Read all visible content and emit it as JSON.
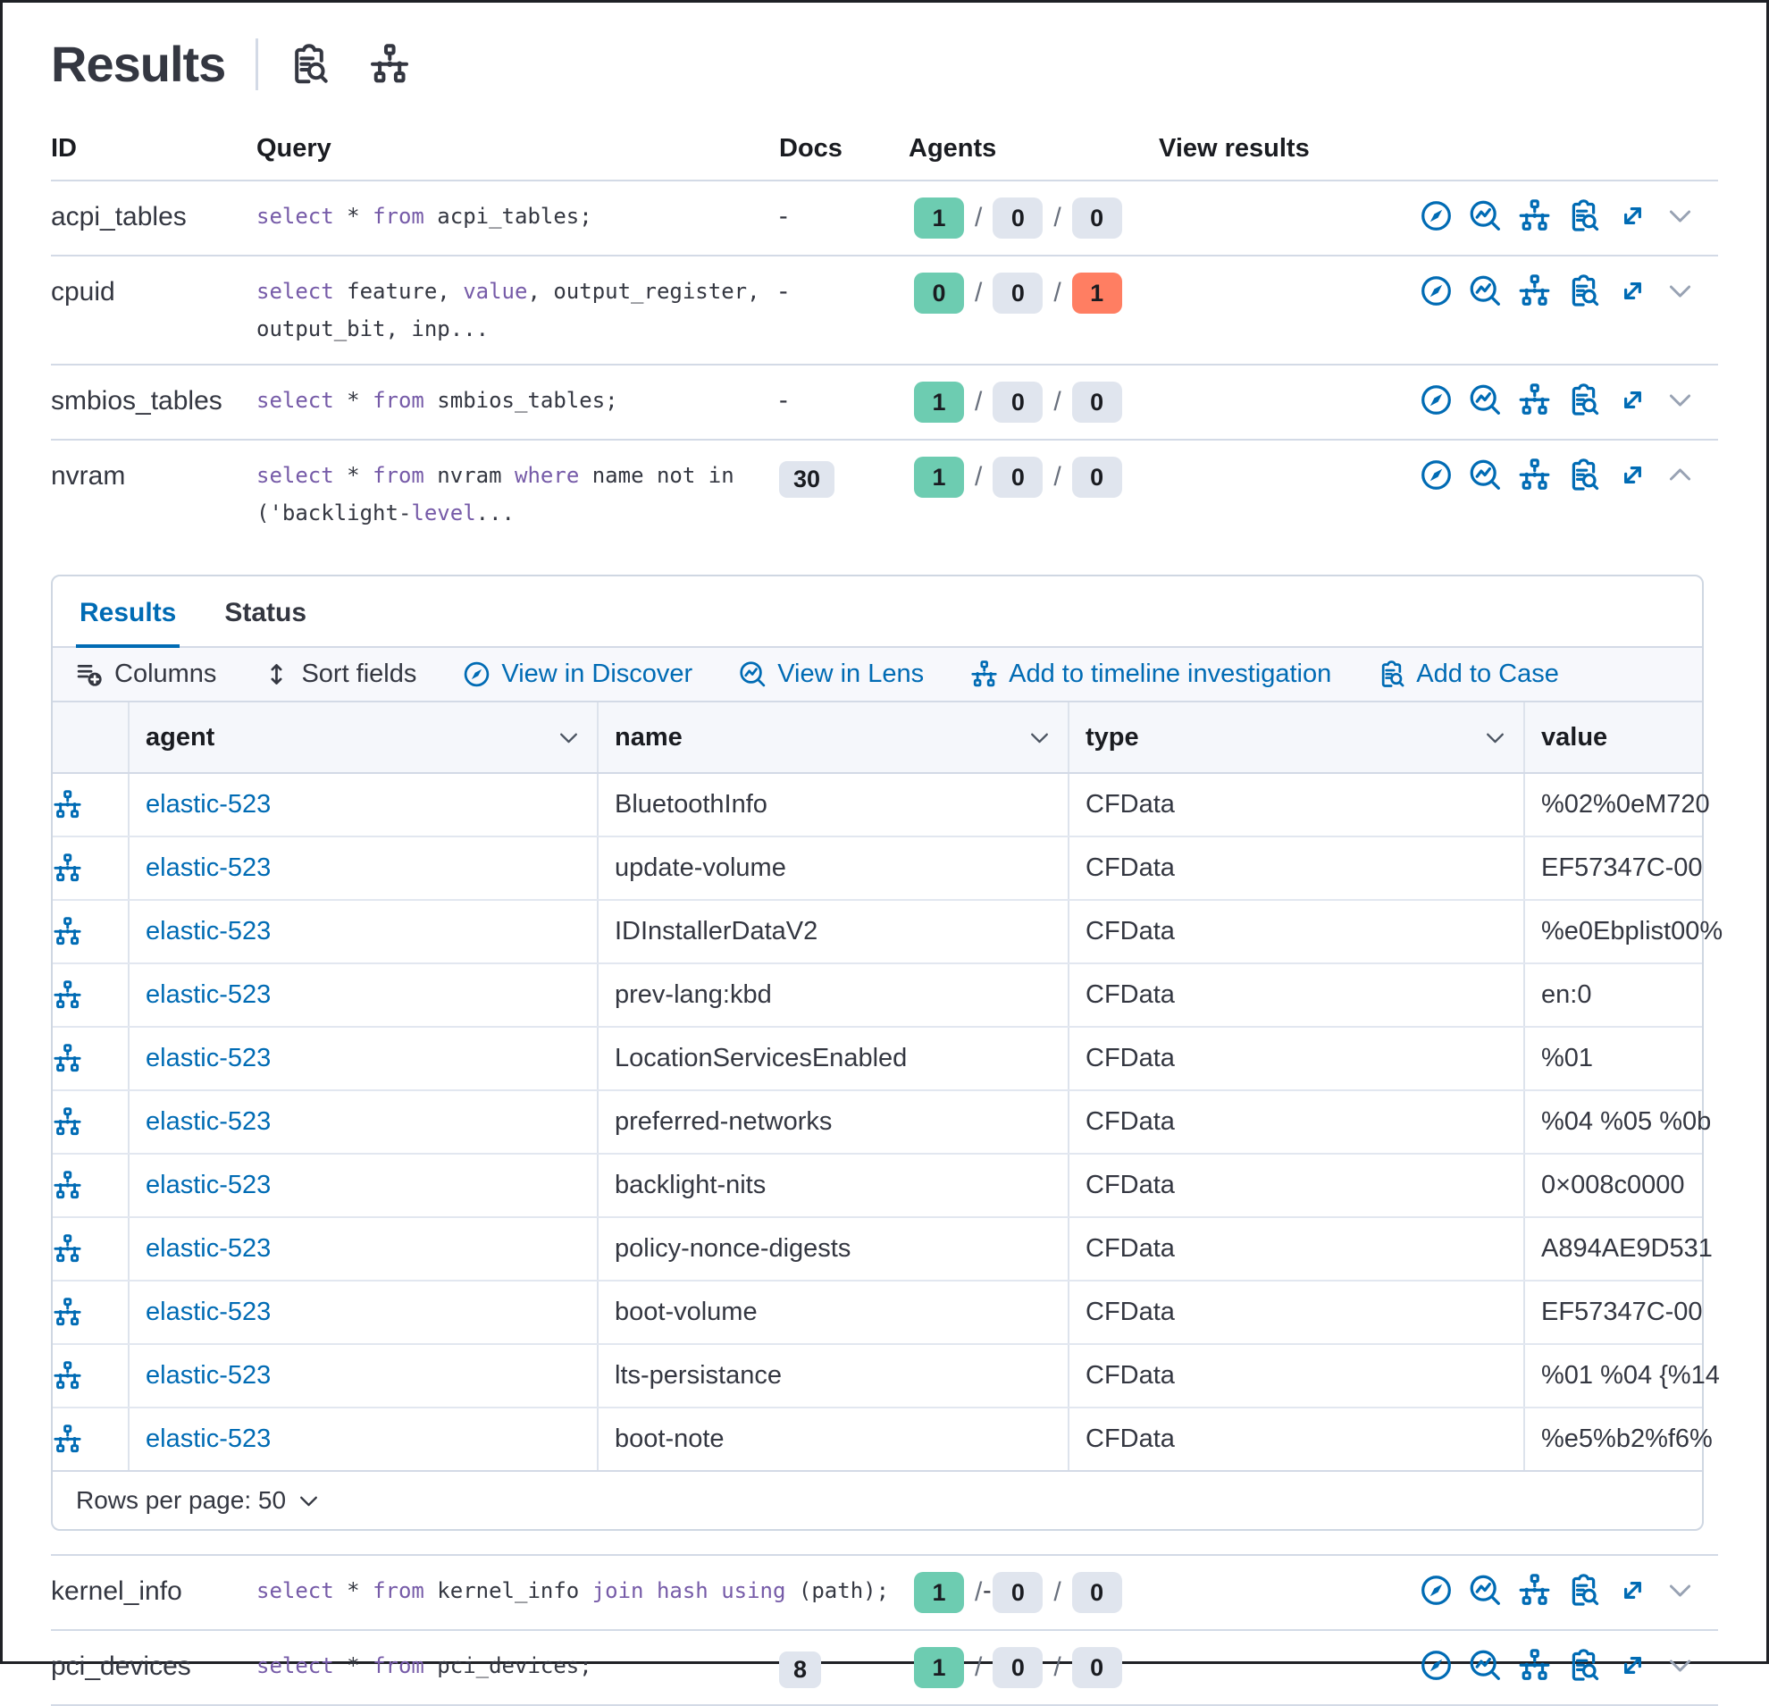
{
  "page": {
    "title": "Results"
  },
  "colors": {
    "accent_blue": "#006bb4",
    "keyword_purple": "#765ba8",
    "badge_success_green": "#6dccb1",
    "badge_neutral_gray": "#e0e5ee",
    "badge_failed_red": "#ff7e62",
    "border_gray": "#d3dae6"
  },
  "header_icons": [
    {
      "icon": "cases",
      "name": "inspect-results-icon"
    },
    {
      "icon": "timeline",
      "name": "timeline-icon"
    }
  ],
  "table": {
    "columns": {
      "id": "ID",
      "query": "Query",
      "docs": "Docs",
      "agents": "Agents",
      "view": "View results"
    },
    "rows": [
      {
        "id": "acpi_tables",
        "docs": "-",
        "agents": {
          "success": "1",
          "pending": "0",
          "failed": "0"
        },
        "expanded": false,
        "query": [
          [
            "kw",
            "select"
          ],
          [
            "pl",
            " * "
          ],
          [
            "kw",
            "from"
          ],
          [
            "pl",
            " acpi_tables;"
          ]
        ]
      },
      {
        "id": "cpuid",
        "docs": "-",
        "agents": {
          "success": "0",
          "pending": "0",
          "failed": "1"
        },
        "expanded": false,
        "query": [
          [
            "kw",
            "select"
          ],
          [
            "pl",
            " feature, "
          ],
          [
            "kw",
            "value"
          ],
          [
            "pl",
            ", output_register,\noutput_bit, inp..."
          ]
        ]
      },
      {
        "id": "smbios_tables",
        "docs": "-",
        "agents": {
          "success": "1",
          "pending": "0",
          "failed": "0"
        },
        "expanded": false,
        "query": [
          [
            "kw",
            "select"
          ],
          [
            "pl",
            " * "
          ],
          [
            "kw",
            "from"
          ],
          [
            "pl",
            " smbios_tables;"
          ]
        ]
      },
      {
        "id": "nvram",
        "docs": "30",
        "agents": {
          "success": "1",
          "pending": "0",
          "failed": "0"
        },
        "expanded": true,
        "query": [
          [
            "kw",
            "select"
          ],
          [
            "pl",
            " * "
          ],
          [
            "kw",
            "from"
          ],
          [
            "pl",
            " nvram "
          ],
          [
            "kw",
            "where"
          ],
          [
            "pl",
            " name not in\n('backlight-"
          ],
          [
            "kw",
            "level"
          ],
          [
            "pl",
            "..."
          ]
        ]
      },
      {
        "id": "kernel_info",
        "docs": "-",
        "docs_inline": true,
        "nowrap": true,
        "agents": {
          "success": "1",
          "pending": "0",
          "failed": "0"
        },
        "expanded": false,
        "query": [
          [
            "kw",
            "select"
          ],
          [
            "pl",
            " * "
          ],
          [
            "kw",
            "from"
          ],
          [
            "pl",
            " kernel_info "
          ],
          [
            "kw",
            "join"
          ],
          [
            "pl",
            " "
          ],
          [
            "kw",
            "hash"
          ],
          [
            "pl",
            " "
          ],
          [
            "kw",
            "using"
          ],
          [
            "pl",
            " (path);"
          ]
        ]
      },
      {
        "id": "pci_devices",
        "docs": "8",
        "agents": {
          "success": "1",
          "pending": "0",
          "failed": "0"
        },
        "expanded": false,
        "query": [
          [
            "kw",
            "select"
          ],
          [
            "pl",
            " * "
          ],
          [
            "kw",
            "from"
          ],
          [
            "pl",
            " pci_devices;"
          ]
        ]
      }
    ]
  },
  "view_actions": [
    {
      "icon": "discover",
      "name": "view-in-discover-button"
    },
    {
      "icon": "lens",
      "name": "view-in-lens-button"
    },
    {
      "icon": "timeline",
      "name": "add-to-timeline-button"
    },
    {
      "icon": "cases",
      "name": "add-to-case-button"
    },
    {
      "icon": "expand",
      "name": "expand-results-button"
    }
  ],
  "panel": {
    "tabs": [
      {
        "label": "Results",
        "active": true
      },
      {
        "label": "Status",
        "active": false
      }
    ],
    "toolbar": [
      {
        "label": "Columns",
        "icon": "columns",
        "style": "dark",
        "name": "columns-button"
      },
      {
        "label": "Sort fields",
        "icon": "sort",
        "style": "dark",
        "name": "sort-fields-button"
      },
      {
        "label": "View in Discover",
        "icon": "discover",
        "style": "blue",
        "name": "view-in-discover-button"
      },
      {
        "label": "View in Lens",
        "icon": "lens",
        "style": "blue",
        "name": "view-in-lens-button"
      },
      {
        "label": "Add to timeline investigation",
        "icon": "timeline",
        "style": "blue",
        "name": "add-to-timeline-investigation-button"
      },
      {
        "label": "Add to Case",
        "icon": "cases",
        "style": "blue",
        "name": "add-to-case-button"
      }
    ],
    "grid": {
      "columns": [
        {
          "label": "agent",
          "sortable": true
        },
        {
          "label": "name",
          "sortable": true
        },
        {
          "label": "type",
          "sortable": true
        },
        {
          "label": "value",
          "sortable": false
        }
      ],
      "rows": [
        {
          "agent": "elastic-523",
          "name": "BluetoothInfo",
          "type": "CFData",
          "value": "%02%0eM720"
        },
        {
          "agent": "elastic-523",
          "name": "update-volume",
          "type": "CFData",
          "value": "EF57347C-00"
        },
        {
          "agent": "elastic-523",
          "name": "IDInstallerDataV2",
          "type": "CFData",
          "value": "%e0Ebplist00%"
        },
        {
          "agent": "elastic-523",
          "name": "prev-lang:kbd",
          "type": "CFData",
          "value": "en:0"
        },
        {
          "agent": "elastic-523",
          "name": "LocationServicesEnabled",
          "type": "CFData",
          "value": "%01"
        },
        {
          "agent": "elastic-523",
          "name": "preferred-networks",
          "type": "CFData",
          "value": "%04 %05 %0b"
        },
        {
          "agent": "elastic-523",
          "name": "backlight-nits",
          "type": "CFData",
          "value": "0×008c0000"
        },
        {
          "agent": "elastic-523",
          "name": "policy-nonce-digests",
          "type": "CFData",
          "value": "A894AE9D531"
        },
        {
          "agent": "elastic-523",
          "name": "boot-volume",
          "type": "CFData",
          "value": "EF57347C-00"
        },
        {
          "agent": "elastic-523",
          "name": "lts-persistance",
          "type": "CFData",
          "value": "%01 %04 {%14"
        },
        {
          "agent": "elastic-523",
          "name": "boot-note",
          "type": "CFData",
          "value": "%e5%b2%f6%"
        }
      ],
      "rows_per_page_label": "Rows per page: 50"
    }
  }
}
